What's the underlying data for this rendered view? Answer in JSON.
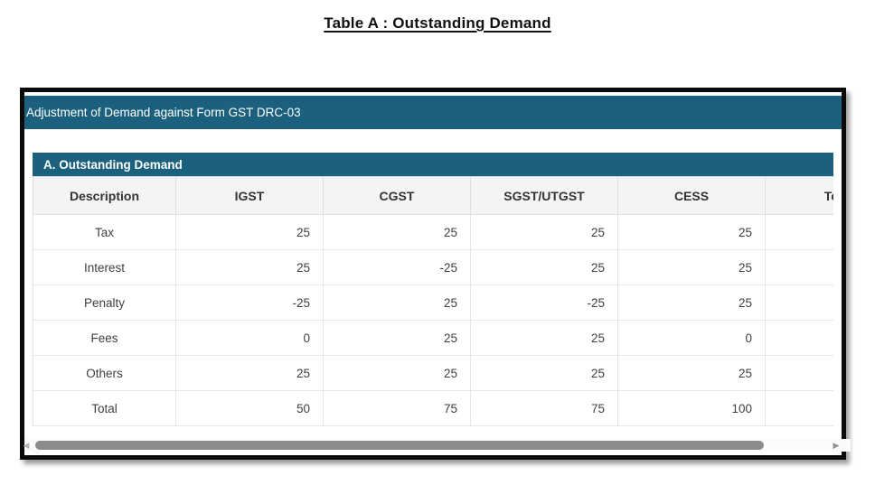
{
  "title": "Table A : Outstanding Demand",
  "panel": {
    "header_bar": "Adjustment of Demand against Form GST DRC-03",
    "section_title": "A. Outstanding Demand"
  },
  "table": {
    "columns": [
      "Description",
      "IGST",
      "CGST",
      "SGST/UTGST",
      "CESS",
      "Total"
    ],
    "rows": [
      {
        "description": "Tax",
        "values": [
          "25",
          "25",
          "25",
          "25",
          ""
        ]
      },
      {
        "description": "Interest",
        "values": [
          "25",
          "-25",
          "25",
          "25",
          ""
        ]
      },
      {
        "description": "Penalty",
        "values": [
          "-25",
          "25",
          "-25",
          "25",
          ""
        ]
      },
      {
        "description": "Fees",
        "values": [
          "0",
          "25",
          "25",
          "0",
          ""
        ]
      },
      {
        "description": "Others",
        "values": [
          "25",
          "25",
          "25",
          "25",
          ""
        ]
      },
      {
        "description": "Total",
        "values": [
          "50",
          "75",
          "75",
          "100",
          ""
        ]
      }
    ]
  },
  "scrollbar": {
    "left_arrow_glyph": "◀",
    "right_arrow_glyph": "▶"
  },
  "colors": {
    "teal": "#1b617e",
    "panel_border": "#0a0a0a",
    "header_row_bg": "#f4f4f4",
    "grid_line": "#e6e6e6",
    "cell_text": "#404040",
    "scroll_thumb": "#8b8b8b"
  }
}
